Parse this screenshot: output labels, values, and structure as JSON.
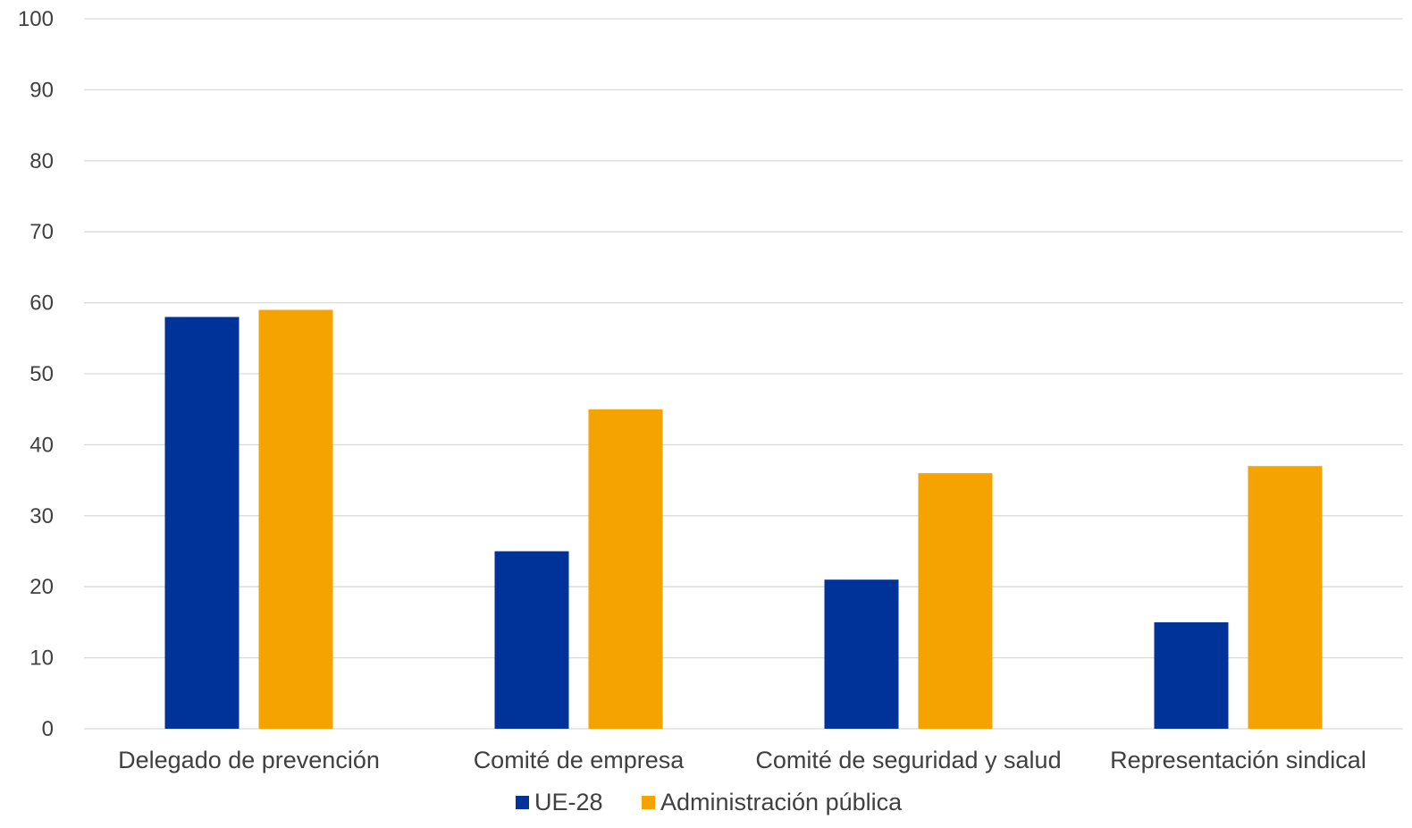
{
  "chart_data": {
    "type": "bar",
    "categories": [
      "Delegado de prevención",
      "Comité de empresa",
      "Comité de seguridad y salud",
      "Representación sindical"
    ],
    "series": [
      {
        "name": "UE-28",
        "color": "#003399",
        "values": [
          58,
          25,
          21,
          15
        ]
      },
      {
        "name": "Administración pública",
        "color": "#F5A300",
        "values": [
          59,
          45,
          36,
          37
        ]
      }
    ],
    "ylim": [
      0,
      100
    ],
    "yticks": [
      "0",
      "10",
      "20",
      "30",
      "40",
      "50",
      "60",
      "70",
      "80",
      "90",
      "100"
    ],
    "xlabel": "",
    "ylabel": "",
    "grid": true,
    "legend": "bottom-center"
  }
}
